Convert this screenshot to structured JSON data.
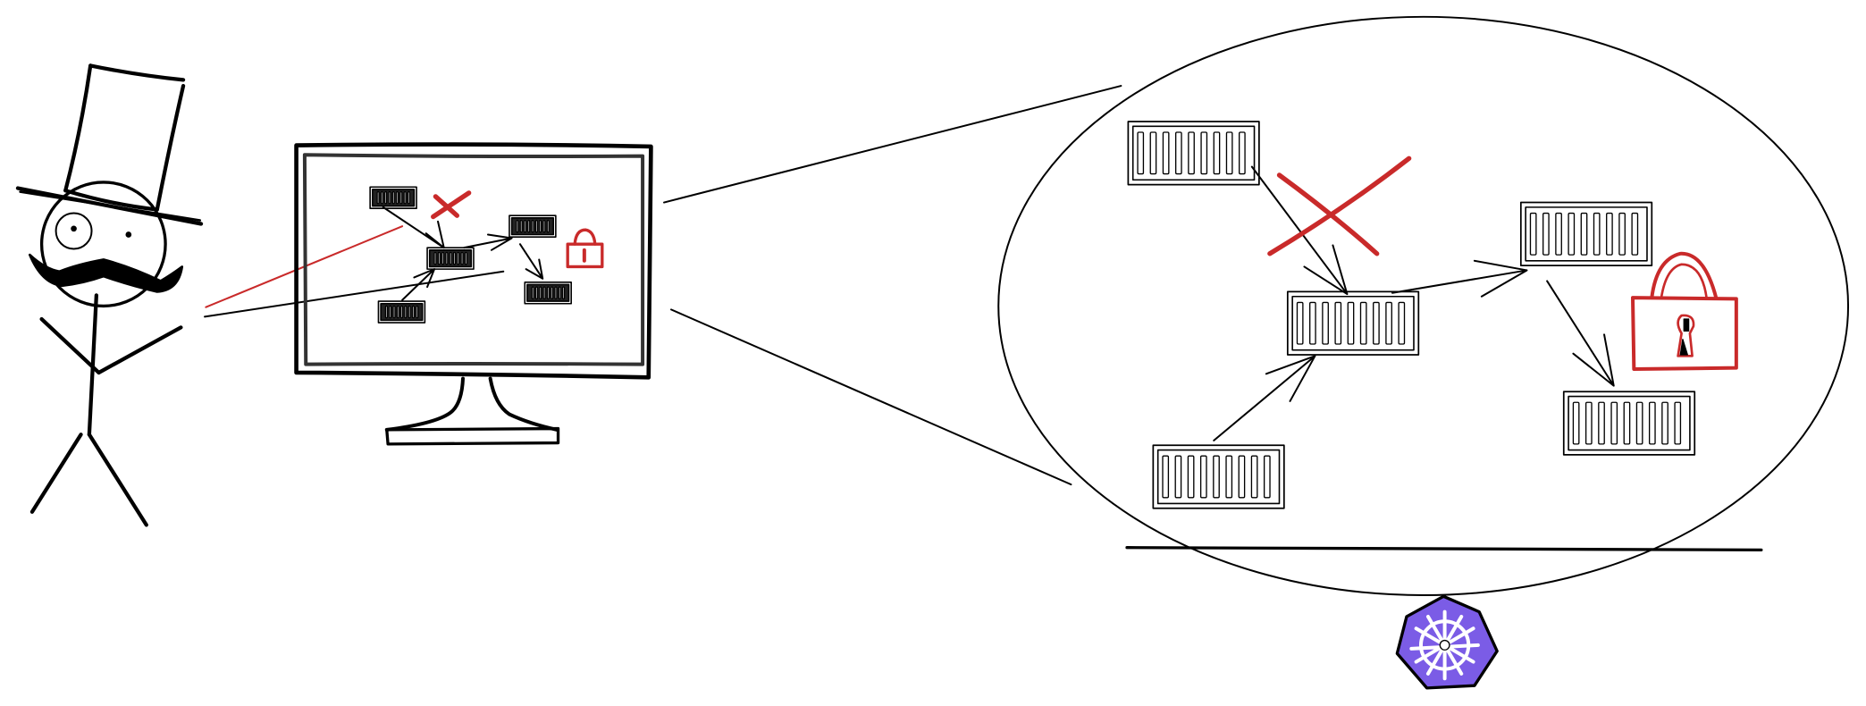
{
  "diagram": {
    "colors": {
      "background": "#ffffff",
      "stroke": "#000000",
      "blocked": "#c92a2a",
      "kubernetes": "#7b5ce6",
      "kubernetes_wheel": "#ffffff"
    },
    "icons": [
      "stick-figure-with-top-hat",
      "monitor",
      "container-icon",
      "red-x-icon",
      "lock-icon",
      "kubernetes-logo-icon"
    ],
    "nodes": {
      "containers_in_cluster": 5,
      "containers_on_monitor": 5
    }
  }
}
